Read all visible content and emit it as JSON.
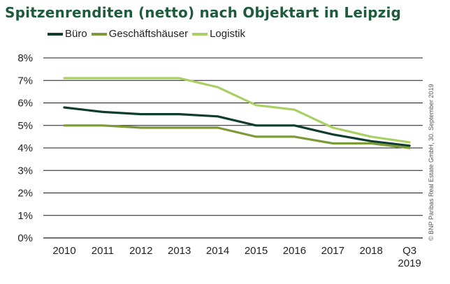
{
  "chart_data": {
    "type": "line",
    "title": "Spitzenrenditen (netto) nach Objektart in Leipzig",
    "categories": [
      "2010",
      "2011",
      "2012",
      "2013",
      "2014",
      "2015",
      "2016",
      "2017",
      "2018",
      "Q3 2019"
    ],
    "category_lines": [
      [
        "2010"
      ],
      [
        "2011"
      ],
      [
        "2012"
      ],
      [
        "2013"
      ],
      [
        "2014"
      ],
      [
        "2015"
      ],
      [
        "2016"
      ],
      [
        "2017"
      ],
      [
        "2018"
      ],
      [
        "Q3",
        "2019"
      ]
    ],
    "series": [
      {
        "name": "Büro",
        "color": "#0f3d2c",
        "values": [
          5.8,
          5.6,
          5.5,
          5.5,
          5.4,
          5.0,
          5.0,
          4.6,
          4.3,
          4.1
        ]
      },
      {
        "name": "Geschäftshäuser",
        "color": "#7c9a38",
        "values": [
          5.0,
          5.0,
          4.9,
          4.9,
          4.9,
          4.5,
          4.5,
          4.2,
          4.2,
          4.0
        ]
      },
      {
        "name": "Logistik",
        "color": "#a9d063",
        "values": [
          7.1,
          7.1,
          7.1,
          7.1,
          6.7,
          5.9,
          5.7,
          4.9,
          4.5,
          4.25
        ]
      }
    ],
    "ylim": [
      0,
      8
    ],
    "yticks": [
      "0%",
      "1%",
      "2%",
      "3%",
      "4%",
      "5%",
      "6%",
      "7%",
      "8%"
    ],
    "legend_position": "top-left",
    "grid": true,
    "xlabel": "",
    "ylabel": ""
  },
  "credit": "© BNP Paribas Real Estate GmbH, 30. September 2019"
}
